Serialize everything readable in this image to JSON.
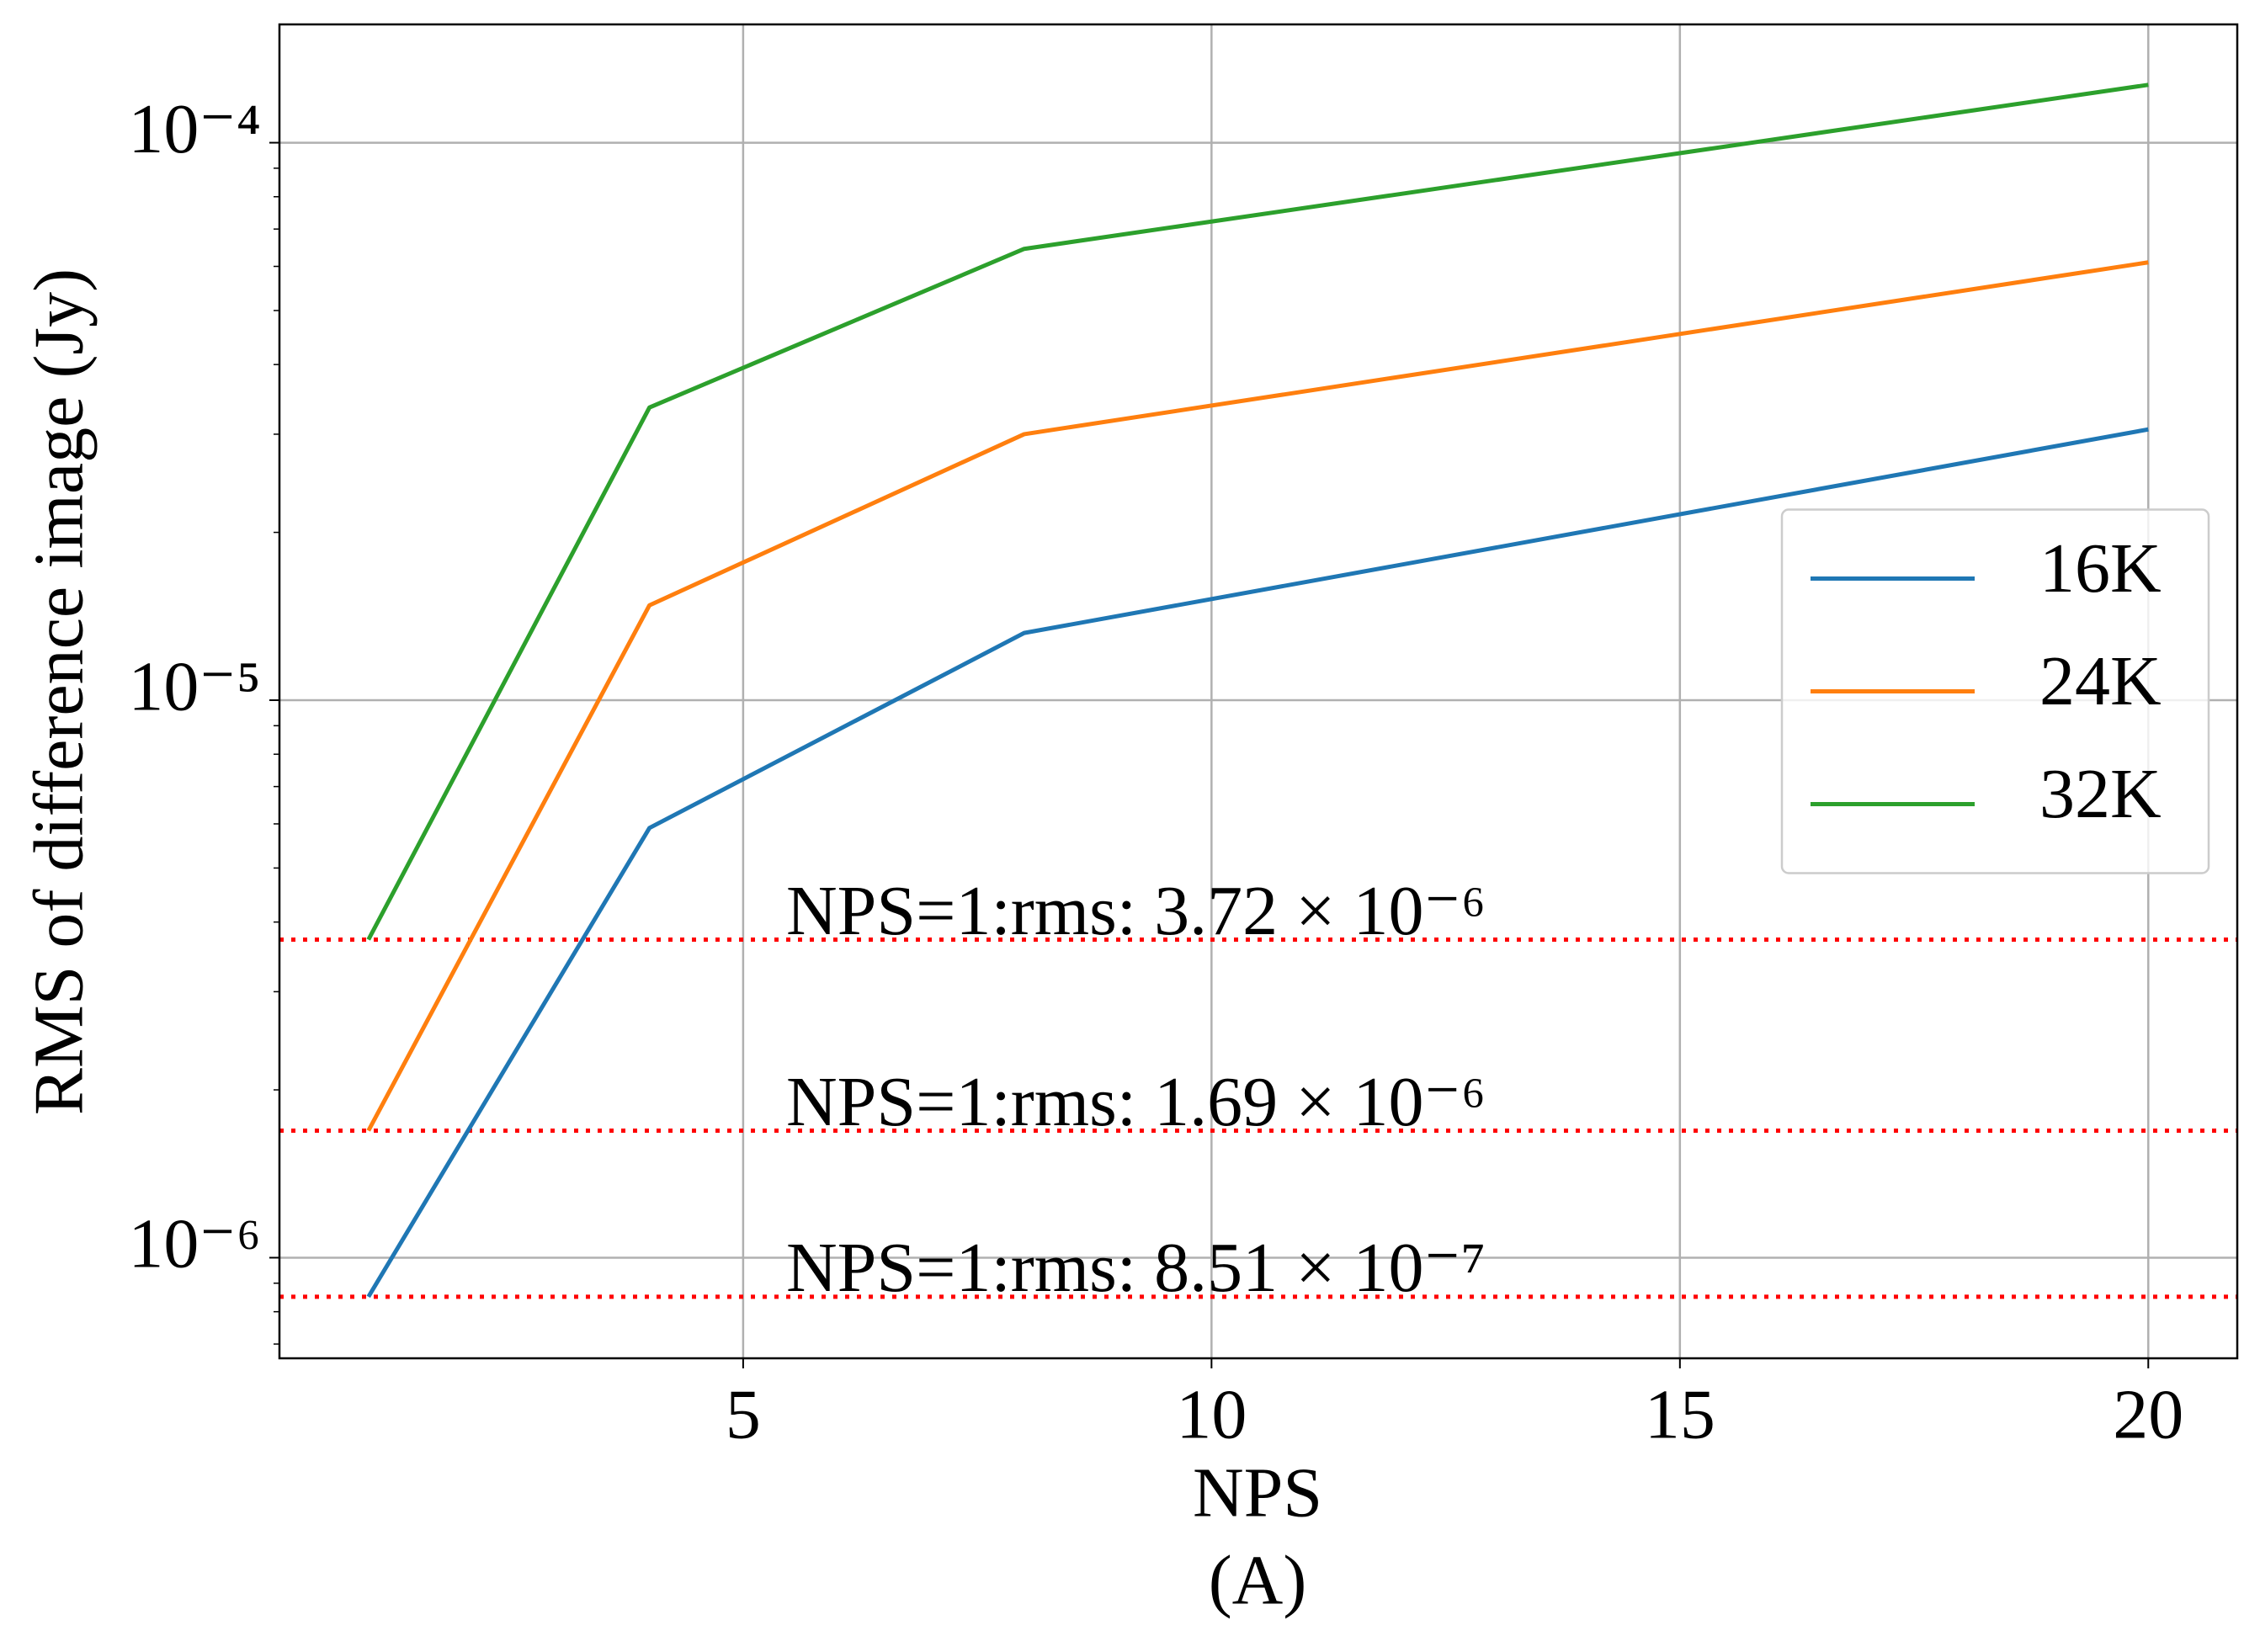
{
  "chart_data": {
    "type": "line",
    "xlabel": "NPS",
    "caption": "(A)",
    "ylabel": "RMS of difference image (Jy)",
    "x": [
      1,
      4,
      8,
      20
    ],
    "series": [
      {
        "name": "16K",
        "color": "#1f77b4",
        "values": [
          8.51e-07,
          5.9e-06,
          1.32e-05,
          3.06e-05
        ]
      },
      {
        "name": "24K",
        "color": "#ff7f0e",
        "values": [
          1.69e-06,
          1.48e-05,
          3e-05,
          6.1e-05
        ]
      },
      {
        "name": "32K",
        "color": "#2ca02c",
        "values": [
          3.72e-06,
          3.35e-05,
          6.45e-05,
          0.000127
        ]
      }
    ],
    "hlines": [
      {
        "value": 3.72e-06,
        "label": "NPS=1:rms: 3.72 × 10⁻⁶",
        "color": "#ff0000"
      },
      {
        "value": 1.69e-06,
        "label": "NPS=1:rms: 1.69 × 10⁻⁶",
        "color": "#ff0000"
      },
      {
        "value": 8.51e-07,
        "label": "NPS=1:rms: 8.51 × 10⁻⁷",
        "color": "#ff0000"
      }
    ],
    "xlim": [
      0.05,
      20.95
    ],
    "xticks": [
      5,
      10,
      15,
      20
    ],
    "ylim": [
      6.6e-07,
      0.000163
    ],
    "ylog": true,
    "yticks": [
      {
        "value": 1e-06,
        "label": "10⁻⁶"
      },
      {
        "value": 1e-05,
        "label": "10⁻⁵"
      },
      {
        "value": 0.0001,
        "label": "10⁻⁴"
      }
    ],
    "yminorticks": [
      7e-07,
      8e-07,
      9e-07,
      2e-06,
      3e-06,
      4e-06,
      5e-06,
      6e-06,
      7e-06,
      8e-06,
      9e-06,
      2e-05,
      3e-05,
      4e-05,
      5e-05,
      6e-05,
      7e-05,
      8e-05,
      9e-05
    ],
    "grid": true,
    "legend": "center right"
  }
}
